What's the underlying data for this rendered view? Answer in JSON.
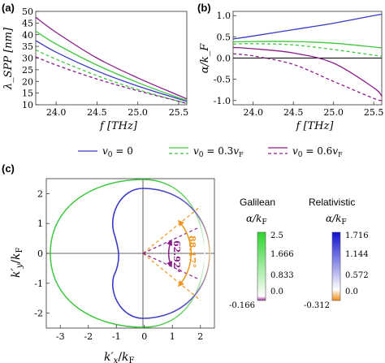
{
  "panel_labels": {
    "a": "(a)",
    "b": "(b)",
    "c": "(c)"
  },
  "legend": [
    {
      "label": "v₀ = 0",
      "style": "solid"
    },
    {
      "label": "v₀ = 0.3v_F",
      "style": "solid+dashed"
    },
    {
      "label": "v₀ = 0.6v_F",
      "style": "solid+dashed"
    }
  ],
  "colors": {
    "v0": "#3a3ac8",
    "v03": "#3ec83e",
    "v06": "#8c1e8c",
    "orange": "#f0961e"
  },
  "colorbars": {
    "galilean": {
      "title": "Galilean",
      "quantity": "α/k_F",
      "ticks": [
        "2.5",
        "1.666",
        "0.833",
        "0.0",
        "-0.166"
      ]
    },
    "relativistic": {
      "title": "Relativistic",
      "quantity": "α/k_F",
      "ticks": [
        "1.716",
        "1.144",
        "0.572",
        "0.0",
        "-0.312"
      ]
    }
  },
  "angle_labels": {
    "purple": "62.92°",
    "orange": "88.17°"
  },
  "chart_data": [
    {
      "panel": "a",
      "type": "line",
      "xlabel": "f [THz]",
      "ylabel": "λ_SPP [nm]",
      "xlim": [
        23.75,
        25.6
      ],
      "ylim": [
        10,
        50
      ],
      "xticks": [
        "24.0",
        "24.5",
        "25.0",
        "25.5"
      ],
      "yticks": [
        "10",
        "15",
        "20",
        "25",
        "30",
        "35",
        "40",
        "45",
        "50"
      ],
      "x": [
        23.75,
        24.0,
        24.5,
        25.0,
        25.5,
        25.6
      ],
      "series": [
        {
          "name": "v₀ = 0",
          "color": "#3a3ac8",
          "dash": false,
          "values": [
            37.5,
            32.5,
            24.5,
            18.0,
            12.5,
            11.5
          ]
        },
        {
          "name": "v₀ = 0.3v_F",
          "color": "#3ec83e",
          "dash": false,
          "values": [
            41.5,
            36.0,
            27.0,
            19.5,
            13.0,
            12.0
          ]
        },
        {
          "name": "v₀ = 0.3v_F",
          "color": "#3ec83e",
          "dash": true,
          "values": [
            33.5,
            29.5,
            22.5,
            16.5,
            11.5,
            10.7
          ]
        },
        {
          "name": "v₀ = 0.6v_F",
          "color": "#8c1e8c",
          "dash": false,
          "values": [
            47.5,
            41.0,
            30.0,
            21.5,
            14.0,
            12.5
          ]
        },
        {
          "name": "v₀ = 0.6v_F",
          "color": "#8c1e8c",
          "dash": true,
          "values": [
            30.5,
            27.0,
            21.0,
            16.0,
            11.5,
            10.5
          ]
        }
      ]
    },
    {
      "panel": "b",
      "type": "line",
      "xlabel": "f [THz]",
      "ylabel": "α/k_F",
      "xlim": [
        23.75,
        25.6
      ],
      "ylim": [
        -1.1,
        1.1
      ],
      "xticks": [
        "24.0",
        "24.5",
        "25.0",
        "25.5"
      ],
      "yticks": [
        "1.0",
        "0.5",
        "0.0",
        "-0.5",
        "-1.0"
      ],
      "x": [
        23.75,
        24.0,
        24.5,
        25.0,
        25.5,
        25.6
      ],
      "series": [
        {
          "name": "v₀ = 0",
          "color": "#3a3ac8",
          "dash": false,
          "values": [
            0.45,
            0.52,
            0.67,
            0.82,
            1.0,
            1.03
          ]
        },
        {
          "name": "v₀ = 0.3v_F",
          "color": "#3ec83e",
          "dash": false,
          "values": [
            0.38,
            0.39,
            0.39,
            0.35,
            0.26,
            0.24
          ]
        },
        {
          "name": "v₀ = 0.3v_F",
          "color": "#3ec83e",
          "dash": true,
          "values": [
            0.33,
            0.34,
            0.31,
            0.2,
            0.07,
            0.04
          ]
        },
        {
          "name": "v₀ = 0.6v_F",
          "color": "#8c1e8c",
          "dash": false,
          "values": [
            0.25,
            0.22,
            0.12,
            -0.12,
            -0.7,
            -0.9
          ]
        },
        {
          "name": "v₀ = 0.6v_F",
          "color": "#8c1e8c",
          "dash": true,
          "values": [
            0.1,
            0.05,
            -0.15,
            -0.55,
            -0.95,
            -1.0
          ]
        }
      ]
    },
    {
      "panel": "c",
      "type": "line",
      "xlabel": "k′_x/k_F",
      "ylabel": "k′_y/k_F",
      "xlim": [
        -3.5,
        2.5
      ],
      "ylim": [
        -2.5,
        2.5
      ],
      "xticks": [
        "-3",
        "-2",
        "-1",
        "0",
        "1",
        "2"
      ],
      "yticks": [
        "2",
        "1",
        "0",
        "-1",
        "-2"
      ],
      "series": [
        {
          "name": "Galilean",
          "color": "#3ec83e"
        },
        {
          "name": "Relativistic",
          "color": "#3a3ac8"
        }
      ]
    }
  ]
}
